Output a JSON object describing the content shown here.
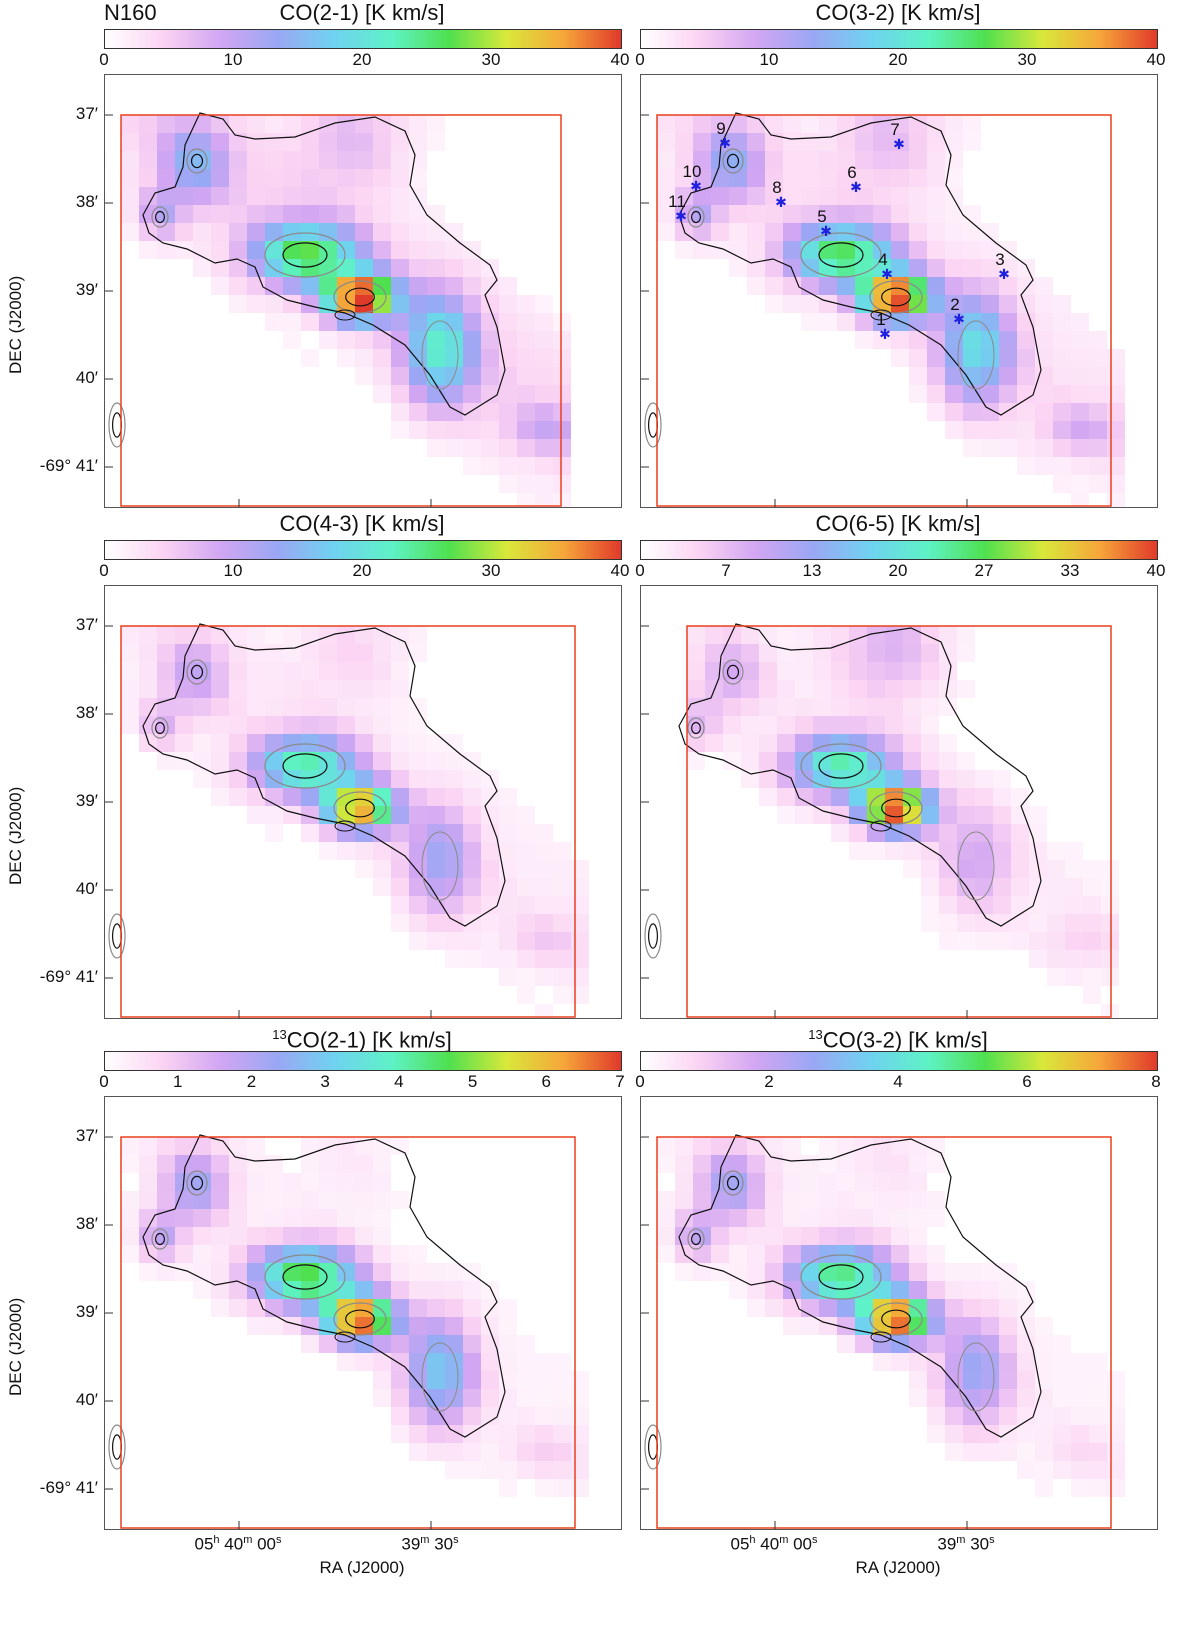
{
  "field_name": "N160",
  "dec_axis_title": "DEC (J2000)",
  "ra_axis_title": "RA (J2000)",
  "dec_ticks": [
    "37′",
    "38′",
    "39′",
    "40′",
    "-69° 41′"
  ],
  "ra_ticks": [
    {
      "h": "05",
      "m": "40",
      "s": "00",
      "text": "05h 40m 00s"
    },
    {
      "h": "",
      "m": "39",
      "s": "30",
      "text": "39m 30s"
    }
  ],
  "colors": {
    "box": "#e8401c",
    "contour_dark": "#111111",
    "contour_grey": "#8a8a8a",
    "star": "#2020e0",
    "colormap": [
      "#ffffff",
      "#fbd4f3",
      "#d2a6f2",
      "#9aa7f4",
      "#6fd2f0",
      "#5ef2c6",
      "#4fe04f",
      "#d8e83a",
      "#f6a63a",
      "#e03a2a"
    ]
  },
  "panels": [
    {
      "id": "co21",
      "title_sup": "",
      "title": "CO(2-1) [K km/s]",
      "ticks": [
        "0",
        "10",
        "20",
        "30",
        "40"
      ],
      "show_stars": false
    },
    {
      "id": "co32",
      "title_sup": "",
      "title": "CO(3-2) [K km/s]",
      "ticks": [
        "0",
        "10",
        "20",
        "30",
        "40"
      ],
      "show_stars": true
    },
    {
      "id": "co43",
      "title_sup": "",
      "title": "CO(4-3) [K km/s]",
      "ticks": [
        "0",
        "10",
        "20",
        "30",
        "40"
      ],
      "show_stars": false
    },
    {
      "id": "co65",
      "title_sup": "",
      "title": "CO(6-5) [K km/s]",
      "ticks": [
        "0",
        "7",
        "13",
        "20",
        "27",
        "33",
        "40"
      ],
      "show_stars": false
    },
    {
      "id": "13co21",
      "title_sup": "13",
      "title": "CO(2-1) [K km/s]",
      "ticks": [
        "0",
        "1",
        "2",
        "3",
        "4",
        "5",
        "6",
        "7"
      ],
      "show_stars": false
    },
    {
      "id": "13co32",
      "title_sup": "13",
      "title": "CO(3-2) [K km/s]",
      "ticks": [
        "0",
        "2",
        "4",
        "6",
        "8"
      ],
      "show_stars": false
    }
  ],
  "stars": [
    {
      "label": "1"
    },
    {
      "label": "2"
    },
    {
      "label": "3"
    },
    {
      "label": "4"
    },
    {
      "label": "5"
    },
    {
      "label": "6"
    },
    {
      "label": "7"
    },
    {
      "label": "8"
    },
    {
      "label": "9"
    },
    {
      "label": "10"
    },
    {
      "label": "11"
    }
  ]
}
